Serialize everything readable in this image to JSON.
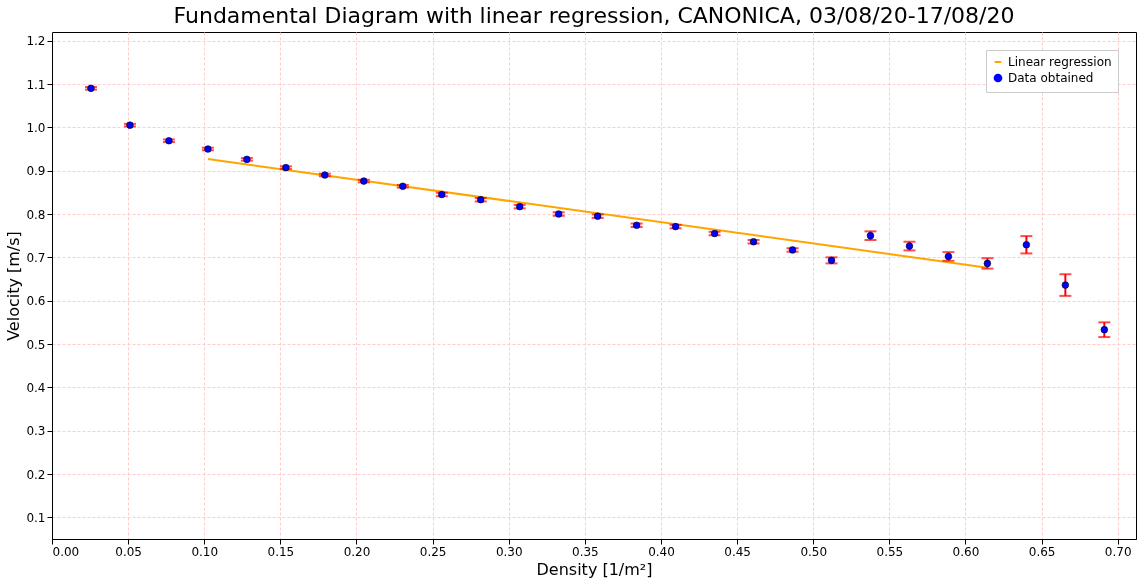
{
  "chart_data": {
    "type": "scatter",
    "title": "Fundamental Diagram with linear regression, CANONICA, 03/08/20-17/08/20",
    "xlabel": "Density [1/m²]",
    "ylabel": "Velocity [m/s]",
    "xlim": [
      0.0,
      0.712
    ],
    "ylim": [
      0.05,
      1.22
    ],
    "xticks": [
      {
        "value": 0.0,
        "label": "0.00"
      },
      0.05,
      {
        "value": 0.1,
        "label": "0.10"
      },
      0.15,
      {
        "value": 0.2,
        "label": "0.20"
      },
      0.25,
      {
        "value": 0.3,
        "label": "0.30"
      },
      0.35,
      {
        "value": 0.4,
        "label": "0.40"
      },
      0.45,
      {
        "value": 0.5,
        "label": "0.50"
      },
      0.55,
      {
        "value": 0.6,
        "label": "0.60"
      },
      0.65,
      {
        "value": 0.7,
        "label": "0.70"
      }
    ],
    "yticks": [
      0.1,
      0.2,
      0.3,
      0.4,
      0.5,
      0.6,
      0.7,
      0.8,
      0.9,
      {
        "value": 1.0,
        "label": "1.0"
      },
      1.1,
      1.2
    ],
    "grid": true,
    "legend": "top right",
    "series": [
      {
        "name": "Linear regression",
        "type": "line",
        "color": "#ffa500",
        "x": [
          0.1024,
          0.6144
        ],
        "values": [
          0.927,
          0.676
        ]
      },
      {
        "name": "Data obtained",
        "marker": "circle",
        "color": "#0000ff",
        "x": [
          0.0256,
          0.0512,
          0.0768,
          0.1024,
          0.128,
          0.1536,
          0.1792,
          0.2048,
          0.2304,
          0.256,
          0.2816,
          0.3072,
          0.3328,
          0.3584,
          0.384,
          0.4096,
          0.4352,
          0.4608,
          0.4864,
          0.512,
          0.5376,
          0.5632,
          0.5888,
          0.6144,
          0.64,
          0.6656,
          0.6912
        ],
        "values": [
          1.09,
          1.005,
          0.969,
          0.95,
          0.926,
          0.907,
          0.89,
          0.876,
          0.864,
          0.845,
          0.833,
          0.817,
          0.8,
          0.795,
          0.774,
          0.771,
          0.755,
          0.736,
          0.717,
          0.693,
          0.75,
          0.726,
          0.702,
          0.686,
          0.729,
          0.636,
          0.533
        ],
        "errors": [
          0.003,
          0.003,
          0.003,
          0.003,
          0.003,
          0.003,
          0.003,
          0.003,
          0.003,
          0.004,
          0.004,
          0.004,
          0.004,
          0.004,
          0.004,
          0.004,
          0.004,
          0.004,
          0.004,
          0.007,
          0.01,
          0.01,
          0.01,
          0.012,
          0.02,
          0.025,
          0.017
        ]
      }
    ]
  }
}
